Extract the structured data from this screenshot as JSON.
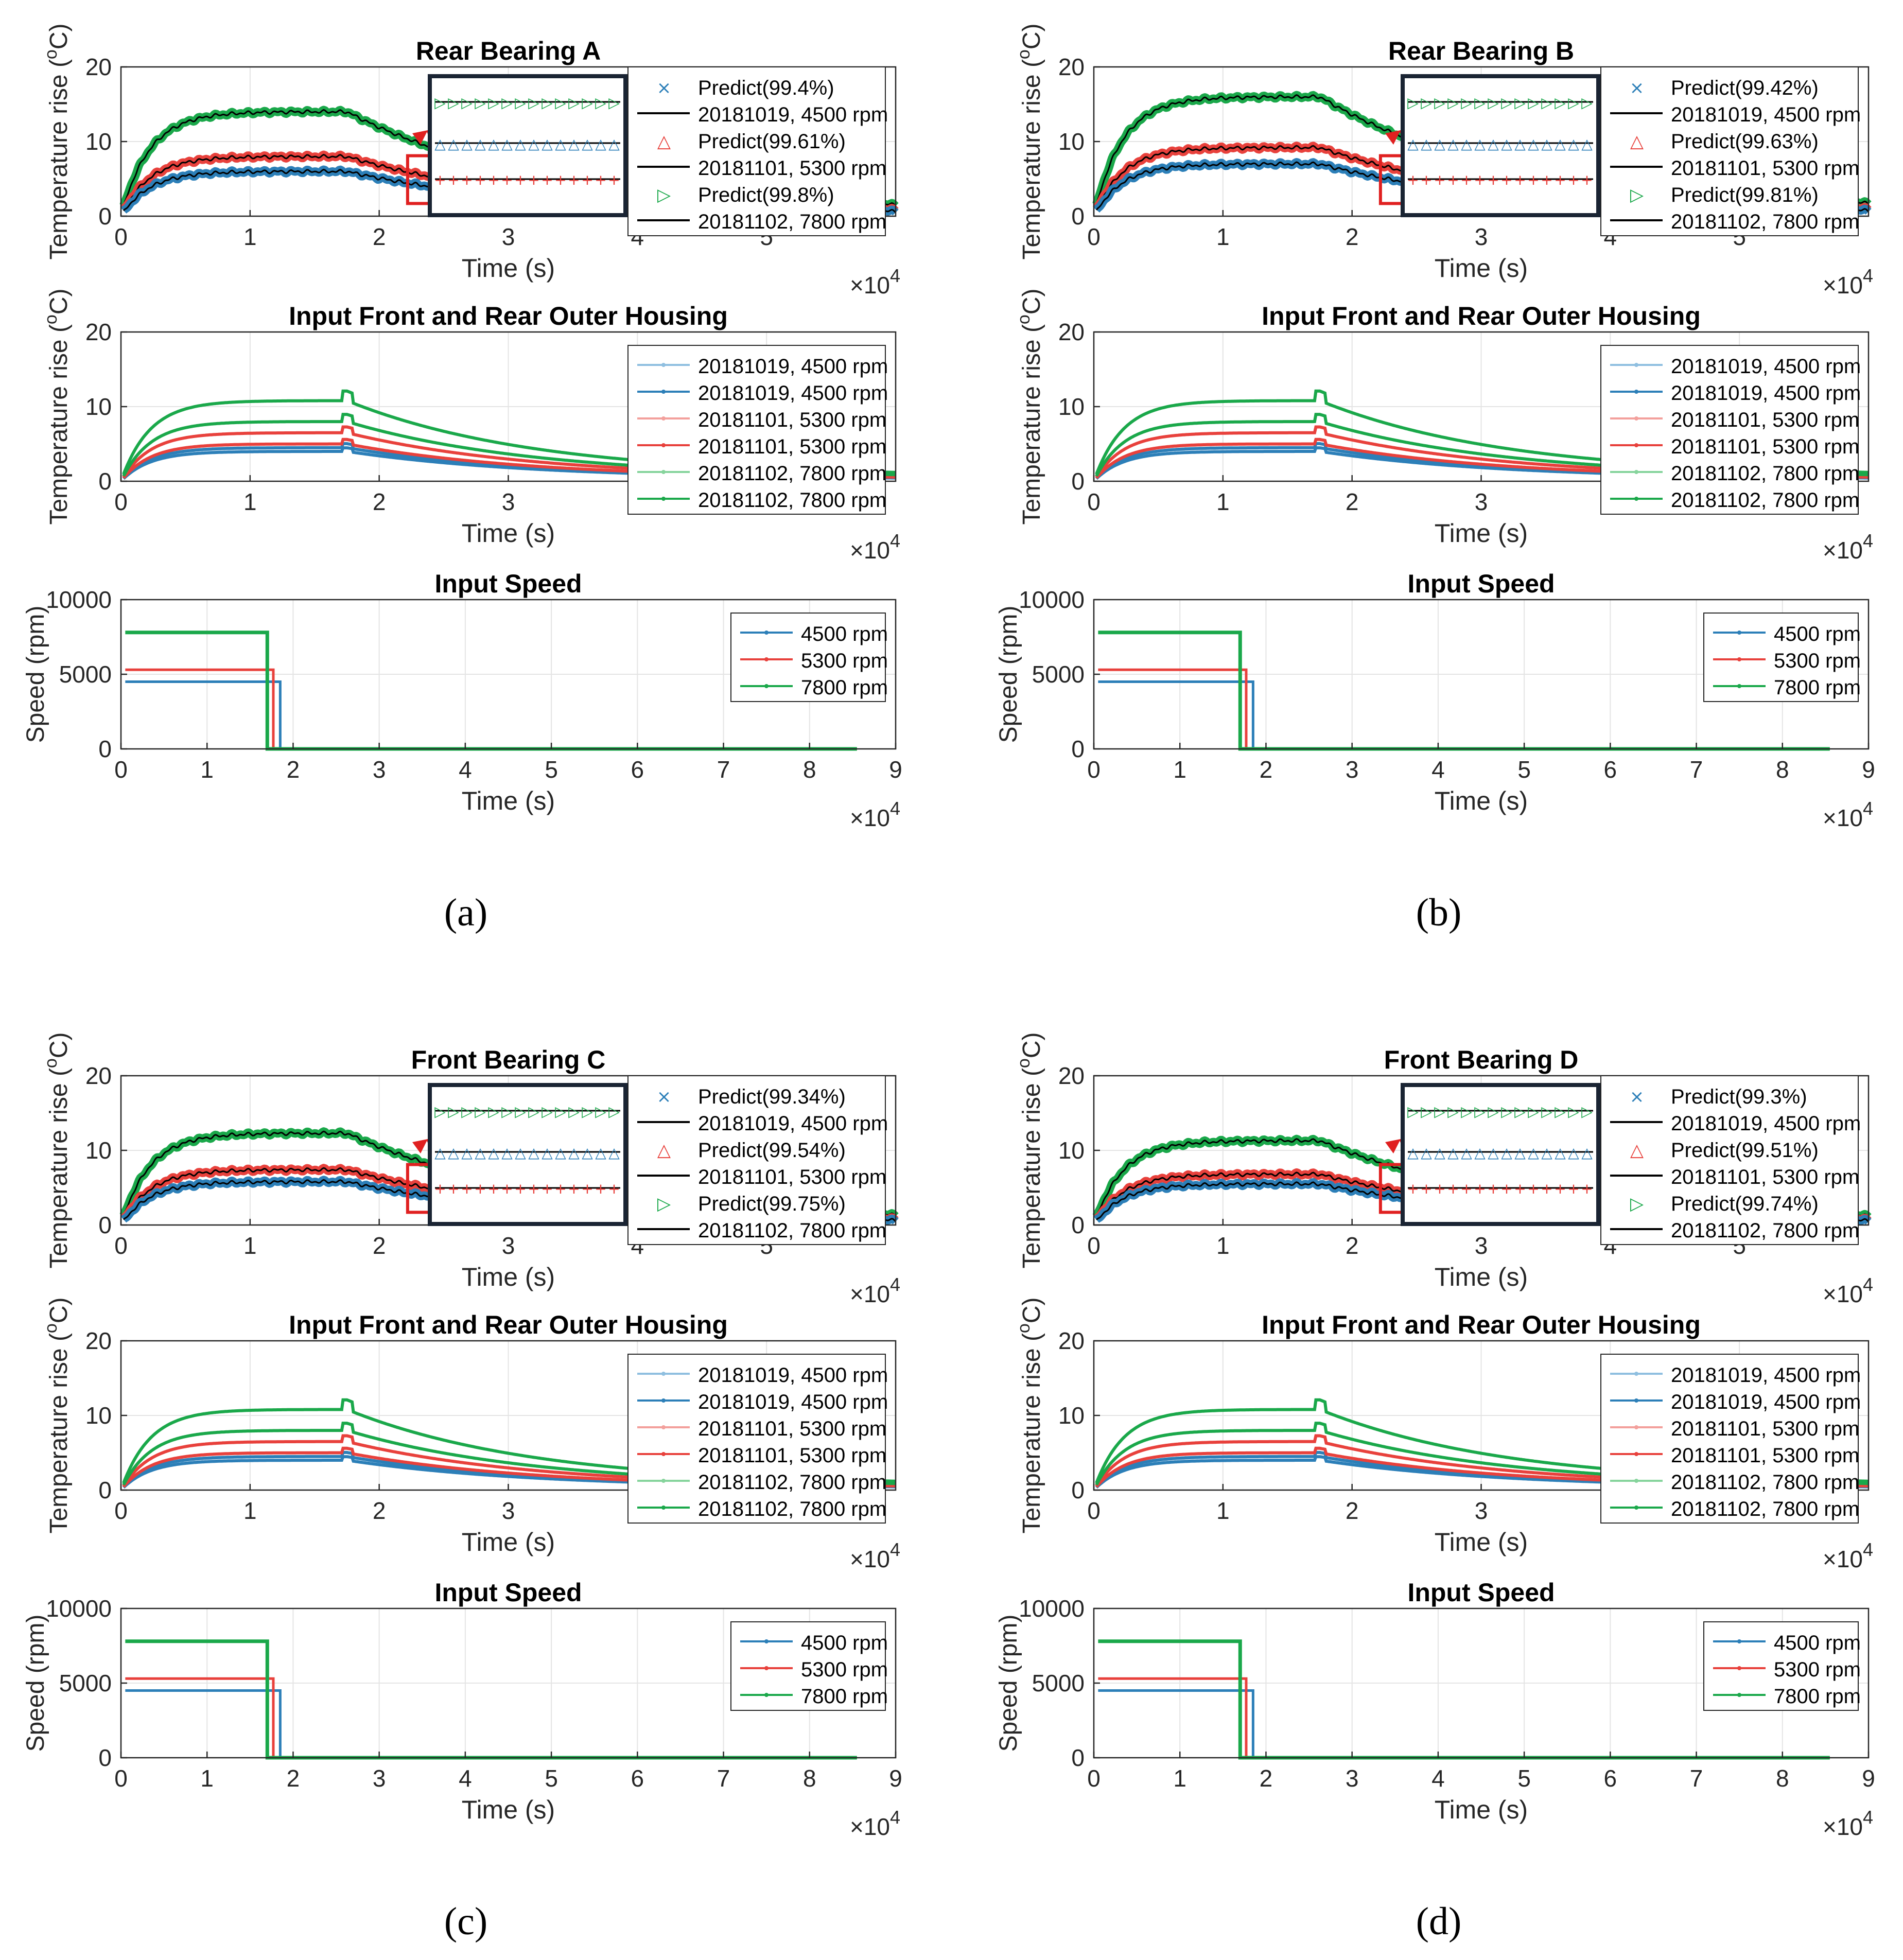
{
  "colors": {
    "s4500": "#2c7fb8",
    "s4500_light": "#8fbfe0",
    "s5300": "#e8413c",
    "s5300_light": "#f3a09c",
    "s7800": "#1aa84a",
    "s7800_light": "#86d49c",
    "predict_line": "#000000",
    "zoom_box": "#e02020",
    "inset_frame": "#1a2433",
    "grid": "#e4e4e4"
  },
  "captions": [
    "(a)",
    "(b)",
    "(c)",
    "(d)"
  ],
  "chart_data": [
    {
      "panel": "a",
      "type": "line",
      "title": "Rear Bearing A",
      "xlabel": "Time (s)",
      "ylabel": "Temperature rise (°C)",
      "ylabel_unit": "C",
      "x_exponent": "×10",
      "x_exponent_power": "4",
      "xlim": [
        0,
        6
      ],
      "ylim": [
        0,
        20
      ],
      "xticks": [
        0,
        1,
        2,
        3,
        4,
        5
      ],
      "yticks": [
        0,
        10,
        20
      ],
      "legend": [
        "Predict(99.4%)",
        "20181019, 4500 rpm",
        "Predict(99.61%)",
        "20181101, 5300 rpm",
        "Predict(99.8%)",
        "20181102, 7800 rpm"
      ],
      "series": [
        {
          "name": "20181019, 4500 rpm",
          "plateau": 6,
          "knee": 1.75
        },
        {
          "name": "20181101, 5300 rpm",
          "plateau": 8,
          "knee": 1.75
        },
        {
          "name": "20181102, 7800 rpm",
          "plateau": 14,
          "knee": 1.75
        }
      ]
    },
    {
      "panel": "a",
      "type": "line",
      "title": "Input Front and Rear Outer Housing",
      "xlabel": "Time (s)",
      "ylabel": "Temperature rise (°C)",
      "ylabel_unit": "C",
      "x_exponent": "×10",
      "x_exponent_power": "4",
      "xlim": [
        0,
        6
      ],
      "ylim": [
        0,
        20
      ],
      "xticks": [
        0,
        1,
        2,
        3,
        4,
        5
      ],
      "yticks": [
        0,
        10,
        20
      ],
      "legend": [
        "20181019, 4500 rpm",
        "20181019, 4500 rpm",
        "20181101, 5300 rpm",
        "20181101, 5300 rpm",
        "20181102, 7800 rpm",
        "20181102, 7800 rpm"
      ],
      "series": [
        {
          "name": "20181019, 4500 rpm",
          "plateau": 4
        },
        {
          "name": "20181019, 4500 rpm",
          "plateau": 4.5
        },
        {
          "name": "20181101, 5300 rpm",
          "plateau": 5
        },
        {
          "name": "20181101, 5300 rpm",
          "plateau": 6.5
        },
        {
          "name": "20181102, 7800 rpm",
          "plateau": 8
        },
        {
          "name": "20181102, 7800 rpm",
          "plateau": 10.8
        }
      ]
    },
    {
      "panel": "a",
      "type": "line",
      "title": "Input Speed",
      "xlabel": "Time (s)",
      "ylabel": "Speed (rpm)",
      "x_exponent": "×10",
      "x_exponent_power": "4",
      "xlim": [
        0,
        9
      ],
      "ylim": [
        0,
        10000
      ],
      "xticks": [
        0,
        1,
        2,
        3,
        4,
        5,
        6,
        7,
        8,
        9
      ],
      "yticks": [
        0,
        5000,
        10000
      ],
      "legend": [
        "4500 rpm",
        "5300 rpm",
        "7800 rpm"
      ],
      "series": [
        {
          "name": "4500 rpm",
          "value": 4500,
          "stop": 1.85
        },
        {
          "name": "5300 rpm",
          "value": 5300,
          "stop": 1.77
        },
        {
          "name": "7800 rpm",
          "value": 7800,
          "stop": 1.7
        }
      ],
      "x_end": 8.55
    },
    {
      "panel": "b",
      "type": "line",
      "title": "Rear Bearing B",
      "xlabel": "Time (s)",
      "ylabel": "Temperature rise (°C)",
      "ylabel_unit": "C",
      "x_exponent": "×10",
      "x_exponent_power": "4",
      "xlim": [
        0,
        6
      ],
      "ylim": [
        0,
        20
      ],
      "xticks": [
        0,
        1,
        2,
        3,
        4,
        5
      ],
      "yticks": [
        0,
        10,
        20
      ],
      "legend": [
        "Predict(99.42%)",
        "20181019, 4500 rpm",
        "Predict(99.63%)",
        "20181101, 5300 rpm",
        "Predict(99.81%)",
        "20181102, 7800 rpm"
      ],
      "series": [
        {
          "name": "20181019, 4500 rpm",
          "plateau": 7,
          "knee": 1.75
        },
        {
          "name": "20181101, 5300 rpm",
          "plateau": 9.2,
          "knee": 1.75
        },
        {
          "name": "20181102, 7800 rpm",
          "plateau": 16,
          "knee": 1.75
        }
      ]
    },
    {
      "panel": "b",
      "type": "line",
      "title": "Input Front and Rear Outer Housing",
      "xlabel": "Time (s)",
      "ylabel": "Temperature rise (°C)",
      "ylabel_unit": "C",
      "x_exponent": "×10",
      "x_exponent_power": "4",
      "xlim": [
        0,
        6
      ],
      "ylim": [
        0,
        20
      ],
      "xticks": [
        0,
        1,
        2,
        3,
        4,
        5
      ],
      "yticks": [
        0,
        10,
        20
      ],
      "legend": [
        "20181019, 4500 rpm",
        "20181019, 4500 rpm",
        "20181101, 5300 rpm",
        "20181101, 5300 rpm",
        "20181102, 7800 rpm",
        "20181102, 7800 rpm"
      ],
      "series": [
        {
          "name": "20181019, 4500 rpm",
          "plateau": 4
        },
        {
          "name": "20181019, 4500 rpm",
          "plateau": 4.5
        },
        {
          "name": "20181101, 5300 rpm",
          "plateau": 5
        },
        {
          "name": "20181101, 5300 rpm",
          "plateau": 6.5
        },
        {
          "name": "20181102, 7800 rpm",
          "plateau": 8
        },
        {
          "name": "20181102, 7800 rpm",
          "plateau": 10.8
        }
      ]
    },
    {
      "panel": "b",
      "type": "line",
      "title": "Input Speed",
      "xlabel": "Time (s)",
      "ylabel": "Speed (rpm)",
      "x_exponent": "×10",
      "x_exponent_power": "4",
      "xlim": [
        0,
        9
      ],
      "ylim": [
        0,
        10000
      ],
      "xticks": [
        0,
        1,
        2,
        3,
        4,
        5,
        6,
        7,
        8,
        9
      ],
      "yticks": [
        0,
        5000,
        10000
      ],
      "legend": [
        "4500 rpm",
        "5300 rpm",
        "7800 rpm"
      ],
      "series": [
        {
          "name": "4500 rpm",
          "value": 4500,
          "stop": 1.85
        },
        {
          "name": "5300 rpm",
          "value": 5300,
          "stop": 1.77
        },
        {
          "name": "7800 rpm",
          "value": 7800,
          "stop": 1.7
        }
      ],
      "x_end": 8.55
    },
    {
      "panel": "c",
      "type": "line",
      "title": "Front Bearing C",
      "xlabel": "Time (s)",
      "ylabel": "Temperature rise (°C)",
      "ylabel_unit": "C",
      "x_exponent": "×10",
      "x_exponent_power": "4",
      "xlim": [
        0,
        6
      ],
      "ylim": [
        0,
        20
      ],
      "xticks": [
        0,
        1,
        2,
        3,
        4,
        5
      ],
      "yticks": [
        0,
        10,
        20
      ],
      "legend": [
        "Predict(99.34%)",
        "20181019, 4500 rpm",
        "Predict(99.54%)",
        "20181101, 5300 rpm",
        "Predict(99.75%)",
        "20181102, 7800 rpm"
      ],
      "series": [
        {
          "name": "20181019, 4500 rpm",
          "plateau": 5.8,
          "knee": 1.75
        },
        {
          "name": "20181101, 5300 rpm",
          "plateau": 7.4,
          "knee": 1.75
        },
        {
          "name": "20181102, 7800 rpm",
          "plateau": 12.3,
          "knee": 1.75
        }
      ]
    },
    {
      "panel": "c",
      "type": "line",
      "title": "Input Front and Rear Outer Housing",
      "xlabel": "Time (s)",
      "ylabel": "Temperature rise (°C)",
      "ylabel_unit": "C",
      "x_exponent": "×10",
      "x_exponent_power": "4",
      "xlim": [
        0,
        6
      ],
      "ylim": [
        0,
        20
      ],
      "xticks": [
        0,
        1,
        2,
        3,
        4,
        5
      ],
      "yticks": [
        0,
        10,
        20
      ],
      "legend": [
        "20181019, 4500 rpm",
        "20181019, 4500 rpm",
        "20181101, 5300 rpm",
        "20181101, 5300 rpm",
        "20181102, 7800 rpm",
        "20181102, 7800 rpm"
      ],
      "series": [
        {
          "name": "20181019, 4500 rpm",
          "plateau": 4
        },
        {
          "name": "20181019, 4500 rpm",
          "plateau": 4.5
        },
        {
          "name": "20181101, 5300 rpm",
          "plateau": 5
        },
        {
          "name": "20181101, 5300 rpm",
          "plateau": 6.5
        },
        {
          "name": "20181102, 7800 rpm",
          "plateau": 8
        },
        {
          "name": "20181102, 7800 rpm",
          "plateau": 10.8
        }
      ]
    },
    {
      "panel": "c",
      "type": "line",
      "title": "Input Speed",
      "xlabel": "Time (s)",
      "ylabel": "Speed (rpm)",
      "x_exponent": "×10",
      "x_exponent_power": "4",
      "xlim": [
        0,
        9
      ],
      "ylim": [
        0,
        10000
      ],
      "xticks": [
        0,
        1,
        2,
        3,
        4,
        5,
        6,
        7,
        8,
        9
      ],
      "yticks": [
        0,
        5000,
        10000
      ],
      "legend": [
        "4500 rpm",
        "5300 rpm",
        "7800 rpm"
      ],
      "series": [
        {
          "name": "4500 rpm",
          "value": 4500,
          "stop": 1.85
        },
        {
          "name": "5300 rpm",
          "value": 5300,
          "stop": 1.77
        },
        {
          "name": "7800 rpm",
          "value": 7800,
          "stop": 1.7
        }
      ],
      "x_end": 8.55
    },
    {
      "panel": "d",
      "type": "line",
      "title": "Front Bearing D",
      "xlabel": "Time (s)",
      "ylabel": "Temperature rise (°C)",
      "ylabel_unit": "C",
      "x_exponent": "×10",
      "x_exponent_power": "4",
      "xlim": [
        0,
        6
      ],
      "ylim": [
        0,
        20
      ],
      "xticks": [
        0,
        1,
        2,
        3,
        4,
        5
      ],
      "yticks": [
        0,
        10,
        20
      ],
      "legend": [
        "Predict(99.3%)",
        "20181019, 4500 rpm",
        "Predict(99.51%)",
        "20181101, 5300 rpm",
        "Predict(99.74%)",
        "20181102, 7800 rpm"
      ],
      "series": [
        {
          "name": "20181019, 4500 rpm",
          "plateau": 5.5,
          "knee": 1.75
        },
        {
          "name": "20181101, 5300 rpm",
          "plateau": 6.8,
          "knee": 1.75
        },
        {
          "name": "20181102, 7800 rpm",
          "plateau": 11.3,
          "knee": 1.75
        }
      ]
    },
    {
      "panel": "d",
      "type": "line",
      "title": "Input Front and Rear Outer Housing",
      "xlabel": "Time (s)",
      "ylabel": "Temperature rise (°C)",
      "ylabel_unit": "C",
      "x_exponent": "×10",
      "x_exponent_power": "4",
      "xlim": [
        0,
        6
      ],
      "ylim": [
        0,
        20
      ],
      "xticks": [
        0,
        1,
        2,
        3,
        4,
        5
      ],
      "yticks": [
        0,
        10,
        20
      ],
      "legend": [
        "20181019, 4500 rpm",
        "20181019, 4500 rpm",
        "20181101, 5300 rpm",
        "20181101, 5300 rpm",
        "20181102, 7800 rpm",
        "20181102, 7800 rpm"
      ],
      "series": [
        {
          "name": "20181019, 4500 rpm",
          "plateau": 4
        },
        {
          "name": "20181019, 4500 rpm",
          "plateau": 4.5
        },
        {
          "name": "20181101, 5300 rpm",
          "plateau": 5
        },
        {
          "name": "20181101, 5300 rpm",
          "plateau": 6.5
        },
        {
          "name": "20181102, 7800 rpm",
          "plateau": 8
        },
        {
          "name": "20181102, 7800 rpm",
          "plateau": 10.8
        }
      ]
    },
    {
      "panel": "d",
      "type": "line",
      "title": "Input Speed",
      "xlabel": "Time (s)",
      "ylabel": "Speed (rpm)",
      "x_exponent": "×10",
      "x_exponent_power": "4",
      "xlim": [
        0,
        9
      ],
      "ylim": [
        0,
        10000
      ],
      "xticks": [
        0,
        1,
        2,
        3,
        4,
        5,
        6,
        7,
        8,
        9
      ],
      "yticks": [
        0,
        5000,
        10000
      ],
      "legend": [
        "4500 rpm",
        "5300 rpm",
        "7800 rpm"
      ],
      "series": [
        {
          "name": "4500 rpm",
          "value": 4500,
          "stop": 1.85
        },
        {
          "name": "5300 rpm",
          "value": 5300,
          "stop": 1.77
        },
        {
          "name": "7800 rpm",
          "value": 7800,
          "stop": 1.7
        }
      ],
      "x_end": 8.55
    }
  ]
}
